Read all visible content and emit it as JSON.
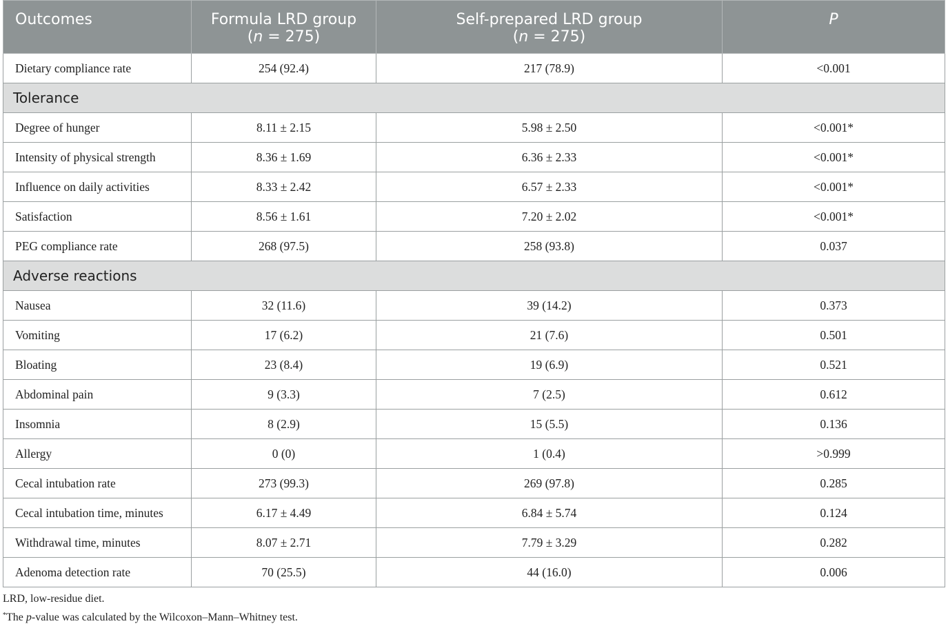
{
  "table": {
    "headers": {
      "outcomes": "Outcomes",
      "formula_title": "Formula LRD group",
      "formula_n_var": "n",
      "formula_n_value": " = 275)",
      "self_title": "Self-prepared LRD group",
      "self_n_var": "n",
      "self_n_value": " = 275)",
      "open_paren": "(",
      "p": "P"
    },
    "rows": [
      {
        "type": "data",
        "label": "Dietary compliance rate",
        "formula": "254 (92.4)",
        "self": "217 (78.9)",
        "p": "<0.001"
      },
      {
        "type": "section",
        "label": "Tolerance"
      },
      {
        "type": "data",
        "label": "Degree of hunger",
        "formula": "8.11 ± 2.15",
        "self": "5.98 ± 2.50",
        "p": "<0.001*"
      },
      {
        "type": "data",
        "label": "Intensity of physical strength",
        "formula": "8.36 ± 1.69",
        "self": "6.36 ± 2.33",
        "p": "<0.001*"
      },
      {
        "type": "data",
        "label": "Influence on daily activities",
        "formula": "8.33 ± 2.42",
        "self": "6.57 ± 2.33",
        "p": "<0.001*"
      },
      {
        "type": "data",
        "label": "Satisfaction",
        "formula": "8.56 ± 1.61",
        "self": "7.20 ± 2.02",
        "p": "<0.001*"
      },
      {
        "type": "data",
        "label": "PEG compliance rate",
        "formula": "268 (97.5)",
        "self": "258 (93.8)",
        "p": "0.037"
      },
      {
        "type": "section",
        "label": "Adverse reactions"
      },
      {
        "type": "data",
        "label": "Nausea",
        "formula": "32 (11.6)",
        "self": "39 (14.2)",
        "p": "0.373"
      },
      {
        "type": "data",
        "label": "Vomiting",
        "formula": "17 (6.2)",
        "self": "21 (7.6)",
        "p": "0.501"
      },
      {
        "type": "data",
        "label": "Bloating",
        "formula": "23 (8.4)",
        "self": "19 (6.9)",
        "p": "0.521"
      },
      {
        "type": "data",
        "label": "Abdominal pain",
        "formula": "9 (3.3)",
        "self": "7 (2.5)",
        "p": "0.612"
      },
      {
        "type": "data",
        "label": "Insomnia",
        "formula": "8 (2.9)",
        "self": "15 (5.5)",
        "p": "0.136"
      },
      {
        "type": "data",
        "label": "Allergy",
        "formula": "0 (0)",
        "self": "1 (0.4)",
        "p": ">0.999"
      },
      {
        "type": "data",
        "label": "Cecal intubation rate",
        "formula": "273 (99.3)",
        "self": "269 (97.8)",
        "p": "0.285"
      },
      {
        "type": "data",
        "label": "Cecal intubation time, minutes",
        "formula": "6.17 ± 4.49",
        "self": "6.84 ± 5.74",
        "p": "0.124"
      },
      {
        "type": "data",
        "label": "Withdrawal time, minutes",
        "formula": "8.07 ± 2.71",
        "self": "7.79 ± 3.29",
        "p": "0.282"
      },
      {
        "type": "data",
        "label": "Adenoma detection rate",
        "formula": "70 (25.5)",
        "self": "44 (16.0)",
        "p": "0.006"
      }
    ]
  },
  "notes": {
    "abbrev": "LRD, low-residue diet.",
    "footnote_mark": "*",
    "footnote_pre": "The ",
    "footnote_italic": "p",
    "footnote_post": "-value was calculated by the Wilcoxon–Mann–Whitney test."
  }
}
